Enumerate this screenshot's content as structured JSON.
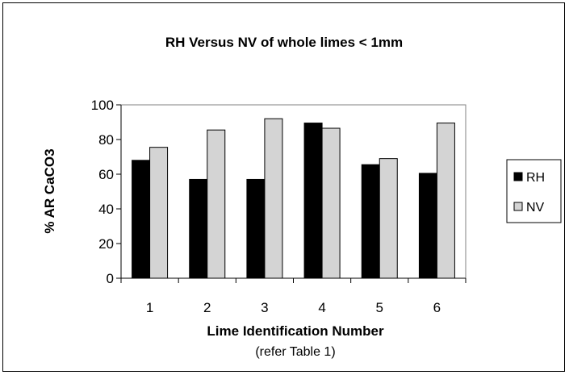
{
  "chart_data": {
    "type": "bar",
    "title": "RH Versus NV of whole limes < 1mm",
    "xlabel": "Lime Identification Number",
    "xlabel_note": "(refer Table 1)",
    "ylabel": "% AR CaCO3",
    "categories": [
      "1",
      "2",
      "3",
      "4",
      "5",
      "6"
    ],
    "series": [
      {
        "name": "RH",
        "values": [
          68,
          57,
          57,
          89.5,
          65.5,
          60.5
        ],
        "color": "#000000"
      },
      {
        "name": "NV",
        "values": [
          75.5,
          85.5,
          92,
          86.5,
          69,
          89.5
        ],
        "color": "#d4d4d4"
      }
    ],
    "ylim": [
      0,
      100
    ],
    "yticks": [
      0,
      20,
      40,
      60,
      80,
      100
    ],
    "ytick_labels": [
      "0",
      "20",
      "40",
      "60",
      "80",
      "100"
    ],
    "grid": false,
    "legend_position": "right"
  }
}
